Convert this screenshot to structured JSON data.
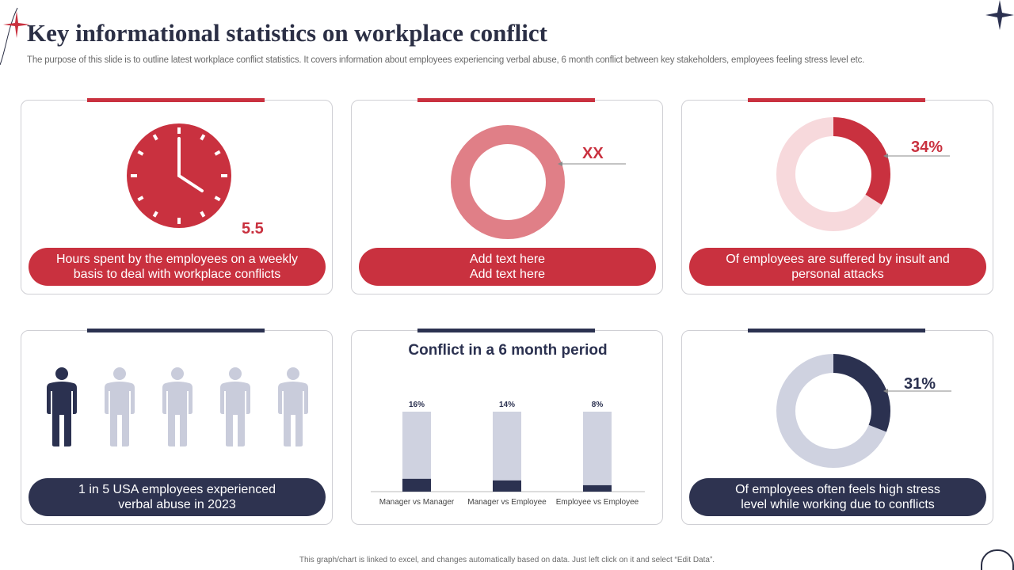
{
  "header": {
    "title": "Key informational statistics on workplace conflict",
    "subtitle": "The purpose of this slide is to outline latest workplace conflict statistics. It covers information about employees experiencing verbal abuse, 6 month conflict between key stakeholders, employees feeling stress level etc."
  },
  "colors": {
    "accent_red": "#c9313f",
    "light_red": "#e07f87",
    "pale_red": "#f7d9dc",
    "navy": "#2b3150",
    "light_navy": "#cfd2e0",
    "person_light": "#c9ccdb"
  },
  "cards": {
    "hours": {
      "icon": "clock-icon",
      "value": "5.5",
      "caption_line1": "Hours spent by the employees on a weekly",
      "caption_line2": "basis to deal with workplace conflicts"
    },
    "placeholder": {
      "value": "XX",
      "caption_line1": "Add text here",
      "caption_line2": "Add text here"
    },
    "insult": {
      "value": "34%",
      "percent": 34,
      "caption_line1": "Of employees are suffered by insult and",
      "caption_line2": "personal attacks"
    },
    "verbal": {
      "icon": "person-icon",
      "highlighted": 1,
      "total": 5,
      "caption_line1": "1 in 5 USA employees experienced",
      "caption_line2": "verbal abuse in 2023"
    },
    "stress": {
      "value": "31%",
      "percent": 31,
      "caption_line1": "Of employees often feels high stress",
      "caption_line2": "level while working due to conflicts"
    }
  },
  "chart_data": {
    "type": "bar",
    "title": "Conflict in a 6 month period",
    "categories": [
      "Manager vs Manager",
      "Manager vs Employee",
      "Employee vs Employee"
    ],
    "values": [
      16,
      14,
      8
    ],
    "value_labels": [
      "16%",
      "14%",
      "8%"
    ],
    "ylim": [
      0,
      100
    ],
    "xlabel": "",
    "ylabel": ""
  },
  "footer": {
    "note": "This graph/chart is linked to excel, and changes automatically based on data. Just left click on it and select “Edit Data”."
  }
}
